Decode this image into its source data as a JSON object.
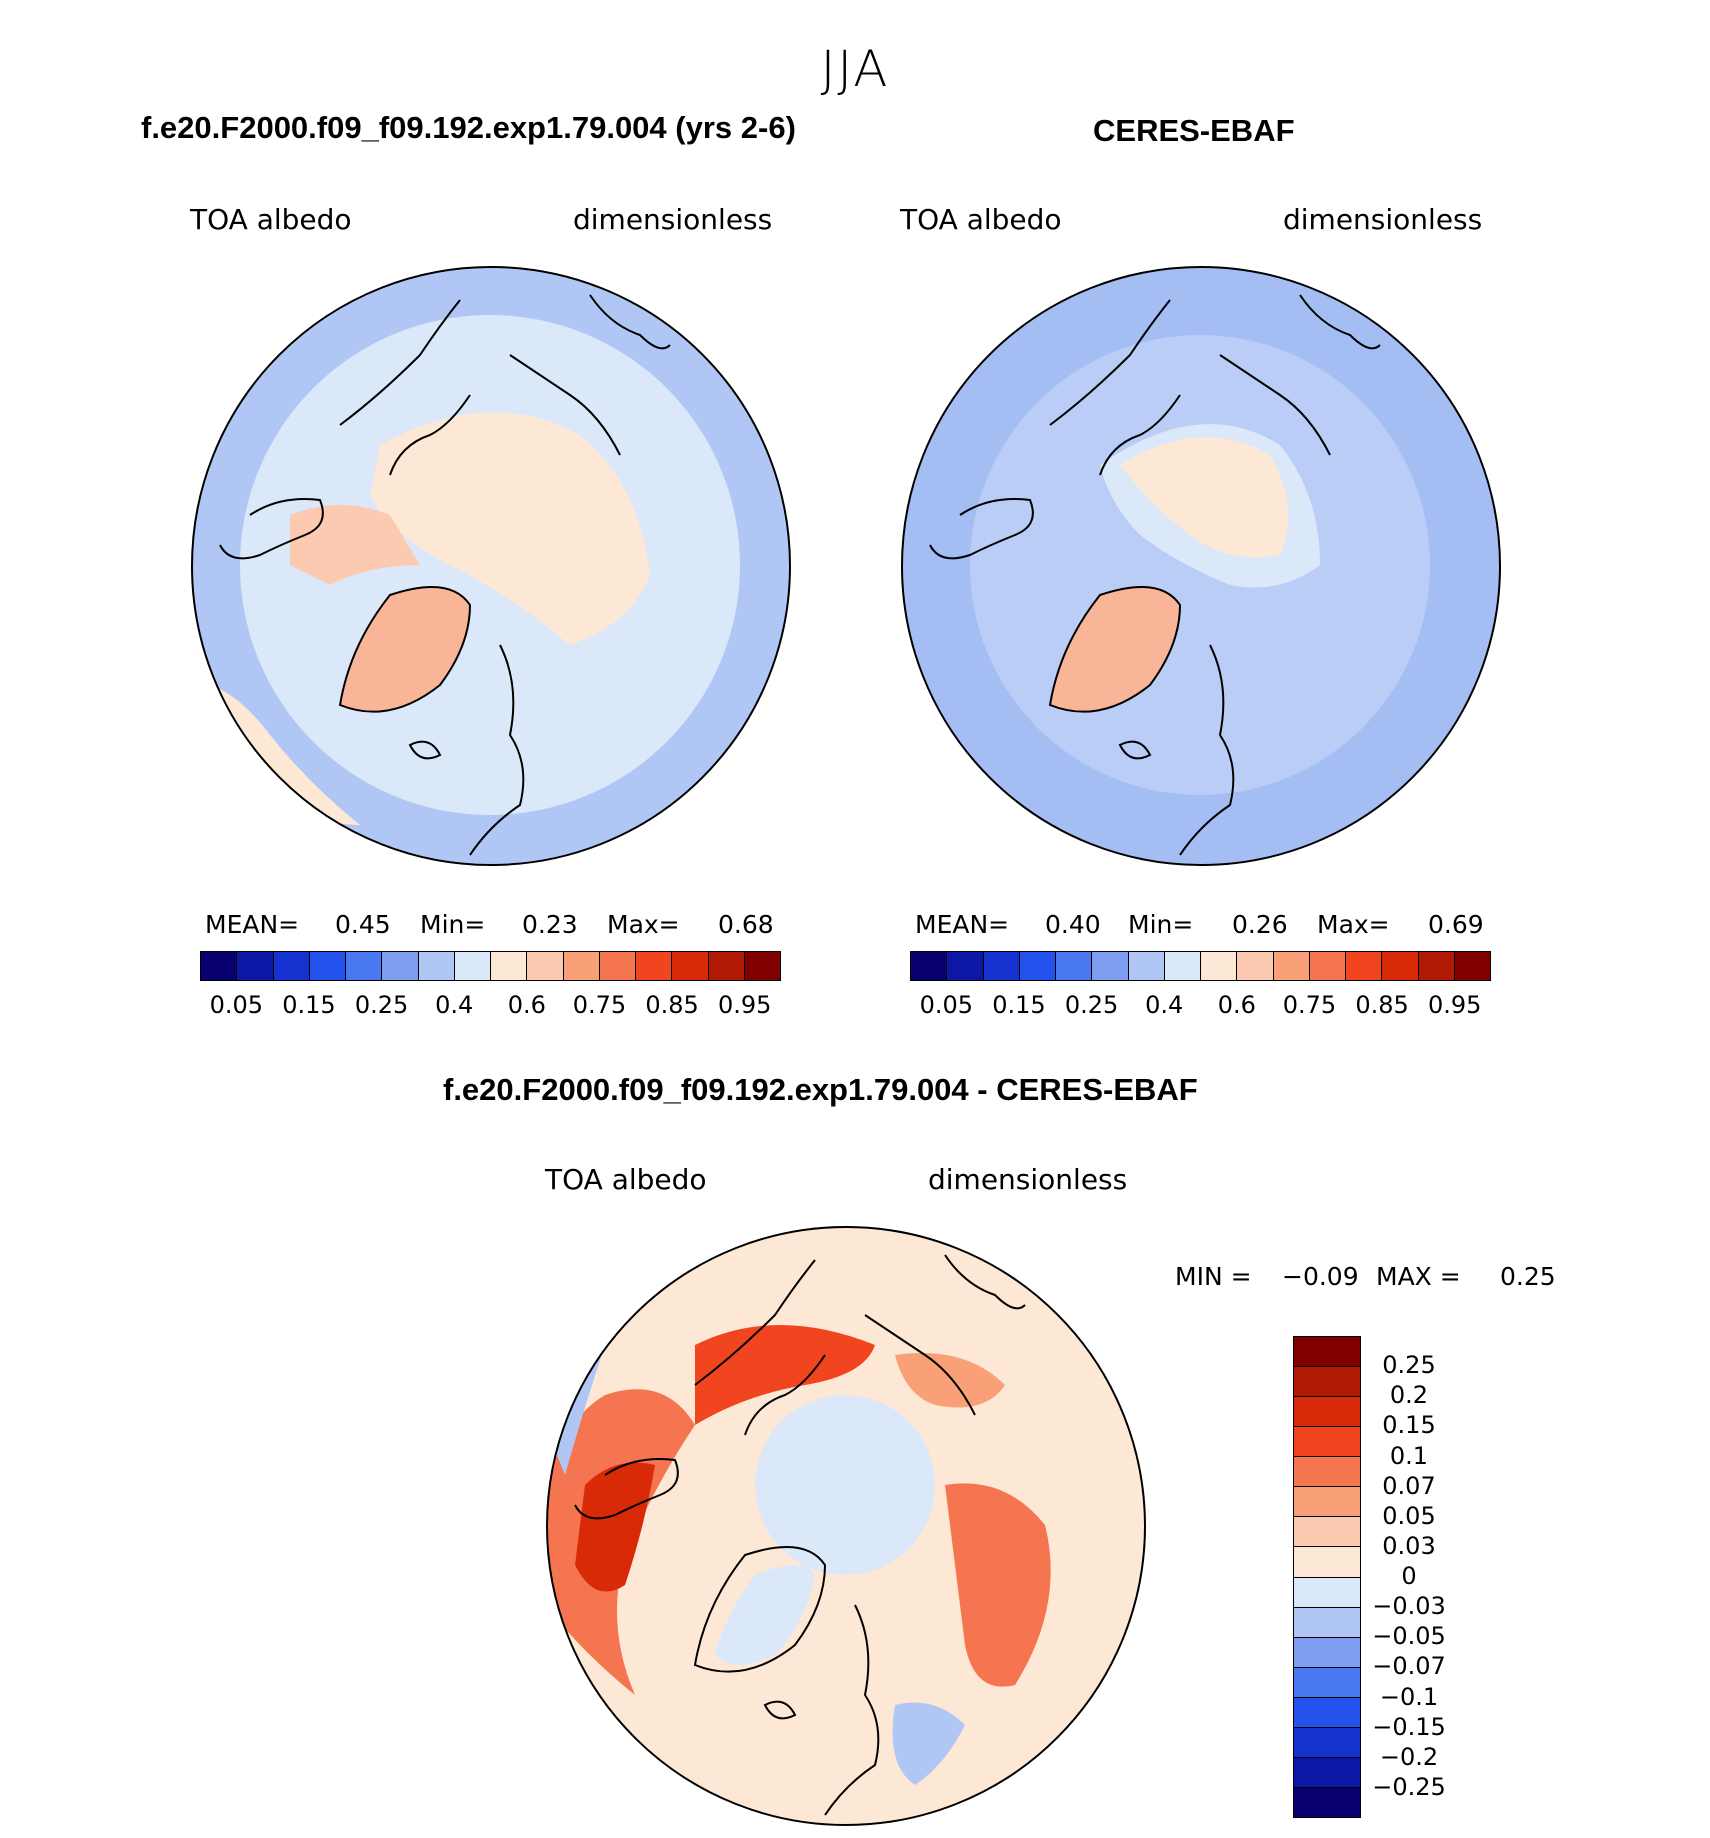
{
  "season": "JJA",
  "panels": [
    {
      "title": "f.e20.F2000.f09_f09.192.exp1.79.004 (yrs 2-6)",
      "variable": "TOA albedo",
      "units": "dimensionless",
      "stats": {
        "mean_label": "MEAN=",
        "mean": "0.45",
        "min_label": "Min=",
        "min": "0.23",
        "max_label": "Max=",
        "max": "0.68"
      },
      "field": {
        "pole_value": 0.55,
        "greenland_value": 0.62,
        "ocean_value": 0.35
      }
    },
    {
      "title": "CERES-EBAF",
      "variable": "TOA albedo",
      "units": "dimensionless",
      "stats": {
        "mean_label": "MEAN=",
        "mean": "0.40",
        "min_label": "Min=",
        "min": "0.26",
        "max_label": "Max=",
        "max": "0.69"
      },
      "field": {
        "pole_value": 0.55,
        "greenland_value": 0.62,
        "ocean_value": 0.33
      }
    }
  ],
  "colorbar_main": {
    "colors": [
      "#08006e",
      "#0c17a6",
      "#1532d1",
      "#2353ec",
      "#4a78f0",
      "#7d9ef0",
      "#b0c7f5",
      "#dbe8fa",
      "#fde8d6",
      "#fccab0",
      "#f9a078",
      "#f57550",
      "#f0451f",
      "#d92a07",
      "#b01a05",
      "#800000"
    ],
    "tick_labels": [
      "0.05",
      "0.15",
      "0.25",
      "0.4",
      "0.6",
      "0.75",
      "0.85",
      "0.95"
    ]
  },
  "diff": {
    "title": "f.e20.F2000.f09_f09.192.exp1.79.004 - CERES-EBAF",
    "variable": "TOA albedo",
    "units": "dimensionless",
    "stats": {
      "min_label": "MIN =",
      "min": "−0.09",
      "max_label": "MAX =",
      "max": "0.25"
    },
    "colorbar": {
      "colors": [
        "#800000",
        "#b01a05",
        "#d92a07",
        "#f0451f",
        "#f57550",
        "#f9a078",
        "#fccab0",
        "#fde8d6",
        "#dbe8fa",
        "#b0c7f5",
        "#7d9ef0",
        "#4a78f0",
        "#2353ec",
        "#1532d1",
        "#0c17a6",
        "#08006e"
      ],
      "tick_labels": [
        "0.25",
        "0.2",
        "0.15",
        "0.1",
        "0.07",
        "0.05",
        "0.03",
        "0",
        "−0.03",
        "−0.05",
        "−0.07",
        "−0.1",
        "−0.15",
        "−0.2",
        "−0.25"
      ]
    }
  }
}
